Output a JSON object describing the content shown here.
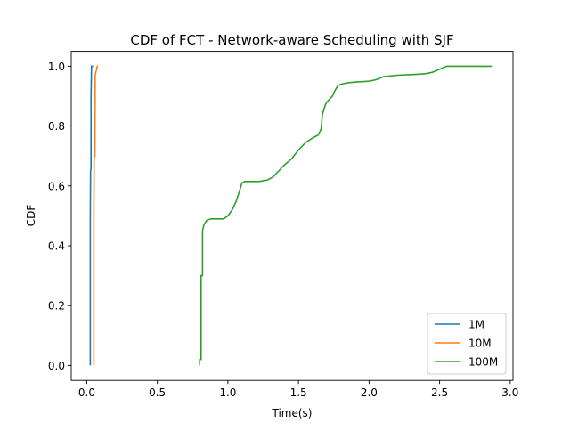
{
  "chart_data": {
    "type": "line",
    "title": "CDF of FCT - Network-aware Scheduling with SJF",
    "xlabel": "Time(s)",
    "ylabel": "CDF",
    "xlim": [
      -0.11,
      3.02
    ],
    "ylim": [
      -0.05,
      1.05
    ],
    "xticks": [
      0.0,
      0.5,
      1.0,
      1.5,
      2.0,
      2.5,
      3.0
    ],
    "xtick_labels": [
      "0.0",
      "0.5",
      "1.0",
      "1.5",
      "2.0",
      "2.5",
      "3.0"
    ],
    "yticks": [
      0.0,
      0.2,
      0.4,
      0.6,
      0.8,
      1.0
    ],
    "ytick_labels": [
      "0.0",
      "0.2",
      "0.4",
      "0.6",
      "0.8",
      "1.0"
    ],
    "grid": false,
    "legend_position": "lower right",
    "series": [
      {
        "name": "1M",
        "color": "#1f77b4",
        "x": [
          0.025,
          0.025,
          0.027,
          0.03,
          0.03,
          0.034,
          0.04,
          0.045
        ],
        "y": [
          0.0,
          0.5,
          0.65,
          0.66,
          0.9,
          1.0,
          1.0,
          1.0
        ]
      },
      {
        "name": "10M",
        "color": "#ff7f0e",
        "x": [
          0.05,
          0.05,
          0.052,
          0.055,
          0.058,
          0.06,
          0.065,
          0.07,
          0.075,
          0.08
        ],
        "y": [
          0.0,
          0.5,
          0.69,
          0.7,
          0.7,
          0.97,
          0.98,
          0.99,
          1.0,
          1.0
        ]
      },
      {
        "name": "100M",
        "color": "#2ca02c",
        "x": [
          0.8,
          0.8,
          0.81,
          0.81,
          0.82,
          0.82,
          0.83,
          0.85,
          0.88,
          0.92,
          0.97,
          1.0,
          1.03,
          1.06,
          1.08,
          1.1,
          1.12,
          1.16,
          1.22,
          1.28,
          1.32,
          1.36,
          1.4,
          1.45,
          1.5,
          1.55,
          1.6,
          1.64,
          1.66,
          1.67,
          1.69,
          1.7,
          1.72,
          1.74,
          1.76,
          1.78,
          1.8,
          1.85,
          1.92,
          2.0,
          2.05,
          2.1,
          2.2,
          2.3,
          2.4,
          2.45,
          2.5,
          2.55,
          2.6,
          2.7,
          2.8,
          2.87
        ],
        "y": [
          0.0,
          0.02,
          0.02,
          0.3,
          0.3,
          0.45,
          0.47,
          0.485,
          0.49,
          0.49,
          0.49,
          0.5,
          0.52,
          0.55,
          0.58,
          0.61,
          0.615,
          0.615,
          0.615,
          0.62,
          0.63,
          0.65,
          0.67,
          0.69,
          0.72,
          0.745,
          0.76,
          0.77,
          0.79,
          0.84,
          0.87,
          0.88,
          0.89,
          0.9,
          0.92,
          0.935,
          0.94,
          0.945,
          0.948,
          0.95,
          0.955,
          0.965,
          0.97,
          0.972,
          0.975,
          0.98,
          0.99,
          1.0,
          1.0,
          1.0,
          1.0,
          1.0
        ]
      }
    ]
  }
}
